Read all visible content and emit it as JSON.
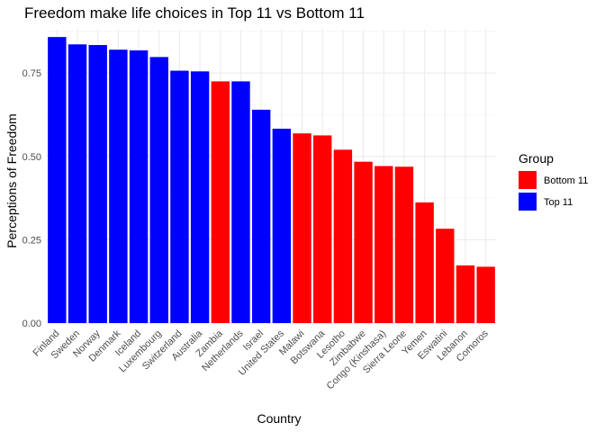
{
  "chart_data": {
    "type": "bar",
    "title": "Freedom make life choices in Top 11 vs Bottom 11",
    "xlabel": "Country",
    "ylabel": "Perceptions of Freedom",
    "ylim": [
      0,
      0.88
    ],
    "yticks": [
      "0.00",
      "0.25",
      "0.50",
      "0.75"
    ],
    "ytick_values": [
      0,
      0.25,
      0.5,
      0.75
    ],
    "grid": true,
    "legend": {
      "title": "Group",
      "placement": "right",
      "entries": [
        {
          "label": "Bottom 11",
          "color": "#ff0000"
        },
        {
          "label": "Top 11",
          "color": "#0000ff"
        }
      ]
    },
    "categories": [
      "Finland",
      "Sweden",
      "Norway",
      "Denmark",
      "Iceland",
      "Luxembourg",
      "Switzerland",
      "Australia",
      "Zambia",
      "Netherlands",
      "Israel",
      "United States",
      "Malawi",
      "Botswana",
      "Lesotho",
      "Zimbabwe",
      "Congo (Kinshasa)",
      "Sierra Leone",
      "Yemen",
      "Eswatini",
      "Lebanon",
      "Comoros"
    ],
    "values": [
      0.858,
      0.836,
      0.834,
      0.82,
      0.818,
      0.798,
      0.757,
      0.755,
      0.725,
      0.725,
      0.64,
      0.583,
      0.569,
      0.563,
      0.52,
      0.484,
      0.471,
      0.469,
      0.362,
      0.283,
      0.173,
      0.169
    ],
    "groups": [
      "Top 11",
      "Top 11",
      "Top 11",
      "Top 11",
      "Top 11",
      "Top 11",
      "Top 11",
      "Top 11",
      "Bottom 11",
      "Top 11",
      "Top 11",
      "Top 11",
      "Bottom 11",
      "Bottom 11",
      "Bottom 11",
      "Bottom 11",
      "Bottom 11",
      "Bottom 11",
      "Bottom 11",
      "Bottom 11",
      "Bottom 11",
      "Bottom 11"
    ]
  }
}
